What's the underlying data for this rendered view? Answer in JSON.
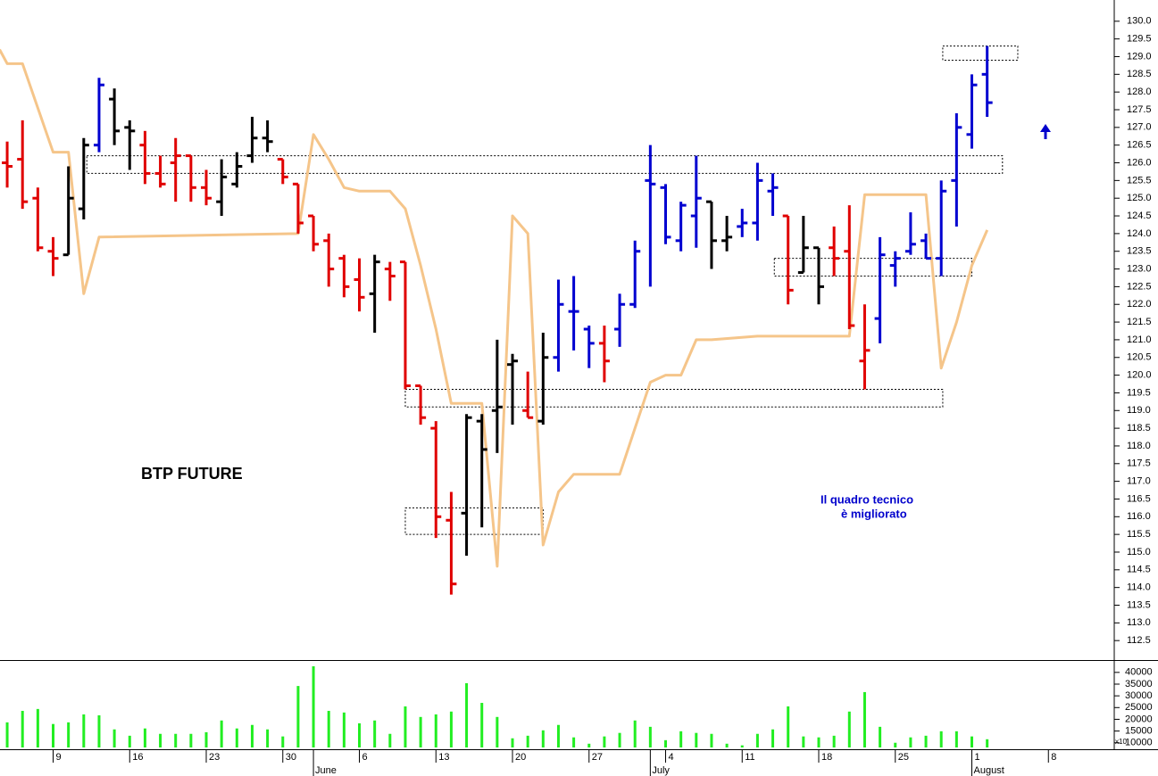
{
  "chart_data": {
    "type": "ohlc",
    "title": "BTP FUTURE",
    "annotation": [
      "Il quadro tecnico",
      "è migliorato"
    ],
    "open": [
      126.0,
      126.1,
      125.0,
      123.5,
      123.4,
      124.7,
      126.5,
      127.8,
      127.0,
      126.5,
      125.7,
      126.0,
      126.2,
      125.3,
      124.9,
      125.4,
      126.2,
      126.7,
      126.1,
      125.4,
      124.5,
      123.8,
      123.3,
      122.7,
      122.3,
      123.0,
      123.2,
      119.7,
      118.5,
      115.9,
      116.1,
      118.7,
      119.0,
      120.3,
      119.0,
      118.7,
      120.5,
      121.8,
      121.3,
      120.9,
      121.3,
      122.0,
      125.5,
      125.3,
      123.8,
      124.5,
      124.9,
      123.8,
      124.2,
      124.3,
      125.2,
      124.5,
      122.9,
      123.6,
      123.6,
      123.5,
      120.4,
      121.6,
      123.1,
      123.5,
      123.8,
      123.3,
      125.5,
      126.8,
      128.5
    ],
    "high": [
      126.6,
      127.2,
      125.3,
      123.9,
      125.9,
      126.7,
      128.4,
      128.1,
      127.2,
      126.9,
      126.2,
      126.7,
      126.2,
      125.8,
      126.1,
      126.3,
      127.3,
      127.2,
      126.1,
      125.4,
      124.5,
      124.0,
      123.4,
      123.3,
      123.4,
      123.2,
      123.2,
      119.7,
      118.7,
      116.7,
      118.9,
      118.9,
      121.0,
      120.6,
      120.1,
      121.2,
      122.7,
      122.8,
      121.4,
      121.4,
      122.3,
      123.8,
      126.5,
      125.4,
      124.9,
      126.2,
      124.9,
      124.5,
      124.7,
      126.0,
      125.7,
      124.5,
      124.5,
      123.6,
      124.2,
      124.8,
      122.0,
      123.9,
      123.5,
      124.6,
      124.0,
      125.5,
      127.4,
      128.5,
      129.3
    ],
    "low": [
      125.3,
      124.7,
      123.5,
      122.8,
      123.4,
      124.4,
      126.3,
      126.5,
      125.8,
      125.4,
      125.3,
      124.9,
      124.9,
      124.8,
      124.5,
      125.3,
      126.0,
      126.3,
      125.4,
      124.0,
      123.5,
      122.5,
      122.2,
      121.8,
      121.2,
      122.1,
      119.6,
      118.6,
      115.4,
      113.8,
      114.9,
      115.7,
      117.8,
      118.6,
      118.8,
      118.6,
      120.1,
      120.7,
      120.2,
      119.8,
      120.8,
      121.9,
      122.5,
      123.7,
      123.5,
      123.6,
      123.0,
      123.5,
      123.9,
      123.8,
      124.5,
      122.0,
      122.9,
      122.0,
      122.8,
      121.3,
      119.6,
      120.9,
      122.5,
      123.4,
      123.3,
      122.8,
      124.2,
      126.4,
      127.3
    ],
    "close": [
      125.9,
      124.9,
      123.6,
      123.3,
      125.0,
      126.5,
      128.2,
      126.9,
      126.9,
      125.7,
      125.4,
      126.2,
      125.3,
      125.0,
      125.6,
      125.9,
      126.7,
      126.6,
      125.6,
      124.3,
      123.7,
      123.0,
      122.5,
      122.2,
      123.2,
      122.8,
      119.7,
      118.8,
      116.0,
      114.1,
      118.8,
      117.9,
      119.1,
      120.4,
      118.8,
      120.5,
      122.0,
      121.8,
      120.9,
      120.4,
      122.0,
      123.5,
      125.4,
      123.9,
      124.8,
      125.0,
      123.8,
      123.9,
      124.3,
      125.5,
      125.3,
      122.4,
      123.6,
      122.5,
      123.3,
      121.4,
      120.7,
      123.4,
      123.3,
      123.7,
      123.3,
      125.2,
      127.0,
      128.2,
      127.7
    ],
    "bar_colors": [
      "#e00000",
      "#e00000",
      "#e00000",
      "#e00000",
      "#000000",
      "#000000",
      "#0000d0",
      "#000000",
      "#000000",
      "#e00000",
      "#e00000",
      "#e00000",
      "#e00000",
      "#e00000",
      "#000000",
      "#000000",
      "#000000",
      "#000000",
      "#e00000",
      "#e00000",
      "#e00000",
      "#e00000",
      "#e00000",
      "#e00000",
      "#000000",
      "#e00000",
      "#e00000",
      "#e00000",
      "#e00000",
      "#e00000",
      "#000000",
      "#000000",
      "#000000",
      "#000000",
      "#e00000",
      "#000000",
      "#0000d0",
      "#0000d0",
      "#0000d0",
      "#e00000",
      "#0000d0",
      "#0000d0",
      "#0000d0",
      "#0000d0",
      "#0000d0",
      "#0000d0",
      "#000000",
      "#000000",
      "#0000d0",
      "#0000d0",
      "#0000d0",
      "#e00000",
      "#000000",
      "#000000",
      "#e00000",
      "#e00000",
      "#e00000",
      "#0000d0",
      "#0000d0",
      "#0000d0",
      "#0000d0",
      "#0000d0",
      "#0000d0",
      "#0000d0",
      "#0000d0"
    ],
    "indicator": {
      "color": "#f5c58a",
      "x": [
        -0.5,
        0,
        1,
        3,
        4,
        5,
        6,
        19,
        20,
        21,
        22,
        23,
        25,
        26,
        27,
        28,
        29,
        31,
        32,
        33,
        34,
        35,
        36,
        37,
        40,
        41,
        42,
        43,
        44,
        45,
        46,
        49,
        50,
        55,
        56,
        60,
        61,
        62,
        63,
        64
      ],
      "values": [
        129.2,
        128.8,
        128.8,
        126.3,
        126.3,
        122.3,
        123.9,
        124.0,
        126.8,
        126.1,
        125.3,
        125.2,
        125.2,
        124.7,
        123.1,
        121.3,
        119.2,
        119.2,
        114.6,
        124.5,
        124.0,
        115.2,
        116.7,
        117.2,
        117.2,
        118.5,
        119.8,
        120.0,
        120.0,
        121.0,
        121.0,
        121.1,
        121.1,
        121.1,
        125.1,
        125.1,
        120.2,
        121.5,
        123.1,
        124.1
      ]
    },
    "zones": [
      {
        "x": [
          5.2,
          65.0
        ],
        "y": [
          125.7,
          126.2
        ]
      },
      {
        "x": [
          26.0,
          61.1
        ],
        "y": [
          119.1,
          119.6
        ]
      },
      {
        "x": [
          26.0,
          35.0
        ],
        "y": [
          115.5,
          116.25
        ]
      },
      {
        "x": [
          50.1,
          63.0
        ],
        "y": [
          122.8,
          123.3
        ]
      },
      {
        "x": [
          61.1,
          66.0
        ],
        "y": [
          128.9,
          129.3
        ]
      }
    ],
    "ylim": [
      111.95,
      130.6
    ],
    "yticks": [
      {
        "value": 112.5,
        "label": "112.5"
      },
      {
        "value": 113,
        "label": "113.0"
      },
      {
        "value": 113.5,
        "label": "113.5"
      },
      {
        "value": 114,
        "label": "114.0"
      },
      {
        "value": 114.5,
        "label": "114.5"
      },
      {
        "value": 115,
        "label": "115.0"
      },
      {
        "value": 115.5,
        "label": "115.5"
      },
      {
        "value": 116,
        "label": "116.0"
      },
      {
        "value": 116.5,
        "label": "116.5"
      },
      {
        "value": 117,
        "label": "117.0"
      },
      {
        "value": 117.5,
        "label": "117.5"
      },
      {
        "value": 118,
        "label": "118.0"
      },
      {
        "value": 118.5,
        "label": "118.5"
      },
      {
        "value": 119,
        "label": "119.0"
      },
      {
        "value": 119.5,
        "label": "119.5"
      },
      {
        "value": 120,
        "label": "120.0"
      },
      {
        "value": 120.5,
        "label": "120.5"
      },
      {
        "value": 121,
        "label": "121.0"
      },
      {
        "value": 121.5,
        "label": "121.5"
      },
      {
        "value": 122,
        "label": "122.0"
      },
      {
        "value": 122.5,
        "label": "122.5"
      },
      {
        "value": 123,
        "label": "123.0"
      },
      {
        "value": 123.5,
        "label": "123.5"
      },
      {
        "value": 124,
        "label": "124.0"
      },
      {
        "value": 124.5,
        "label": "124.5"
      },
      {
        "value": 125,
        "label": "125.0"
      },
      {
        "value": 125.5,
        "label": "125.5"
      },
      {
        "value": 126,
        "label": "126.0"
      },
      {
        "value": 126.5,
        "label": "126.5"
      },
      {
        "value": 127,
        "label": "127.0"
      },
      {
        "value": 127.5,
        "label": "127.5"
      },
      {
        "value": 128,
        "label": "128.0"
      },
      {
        "value": 128.5,
        "label": "128.5"
      },
      {
        "value": 129,
        "label": "129.0"
      },
      {
        "value": 129.5,
        "label": "129.5"
      },
      {
        "value": 130,
        "label": "130.0"
      }
    ],
    "xlim": [
      -0.47,
      72.3
    ],
    "xticks": [
      {
        "value": 3,
        "label": "9"
      },
      {
        "value": 8,
        "label": "16"
      },
      {
        "value": 13,
        "label": "23"
      },
      {
        "value": 18,
        "label": "30"
      },
      {
        "value": 23,
        "label": "6"
      },
      {
        "value": 28,
        "label": "13"
      },
      {
        "value": 33,
        "label": "20"
      },
      {
        "value": 38,
        "label": "27"
      },
      {
        "value": 43,
        "label": "4"
      },
      {
        "value": 48,
        "label": "11"
      },
      {
        "value": 53,
        "label": "18"
      },
      {
        "value": 58,
        "label": "25"
      },
      {
        "value": 63,
        "label": "1"
      },
      {
        "value": 68,
        "label": "8"
      }
    ],
    "month_ticks": [
      {
        "value": 20,
        "label": "June"
      },
      {
        "value": 42,
        "label": "July"
      },
      {
        "value": 63,
        "label": "August"
      }
    ],
    "volume": {
      "color": "#22ee22",
      "note": "x10",
      "values": [
        18700,
        23600,
        24400,
        18000,
        18700,
        22100,
        21700,
        15700,
        13000,
        16100,
        13800,
        13800,
        13800,
        14500,
        19500,
        16100,
        17600,
        15700,
        12700,
        34200,
        42600,
        23600,
        22900,
        18300,
        19500,
        13800,
        25500,
        21000,
        22100,
        23300,
        35400,
        27000,
        21000,
        11900,
        13000,
        15300,
        17600,
        12300,
        9600,
        12700,
        14200,
        19500,
        16800,
        11100,
        14900,
        14200,
        13800,
        9600,
        8900,
        13800,
        15700,
        25500,
        12700,
        12300,
        13000,
        23300,
        31600,
        16800,
        10000,
        12300,
        13000,
        14900,
        14900,
        12700,
        11500
      ],
      "ylim": [
        8000,
        44500
      ],
      "yticks": [
        10000,
        15000,
        20000,
        25000,
        30000,
        35000,
        40000
      ]
    }
  }
}
